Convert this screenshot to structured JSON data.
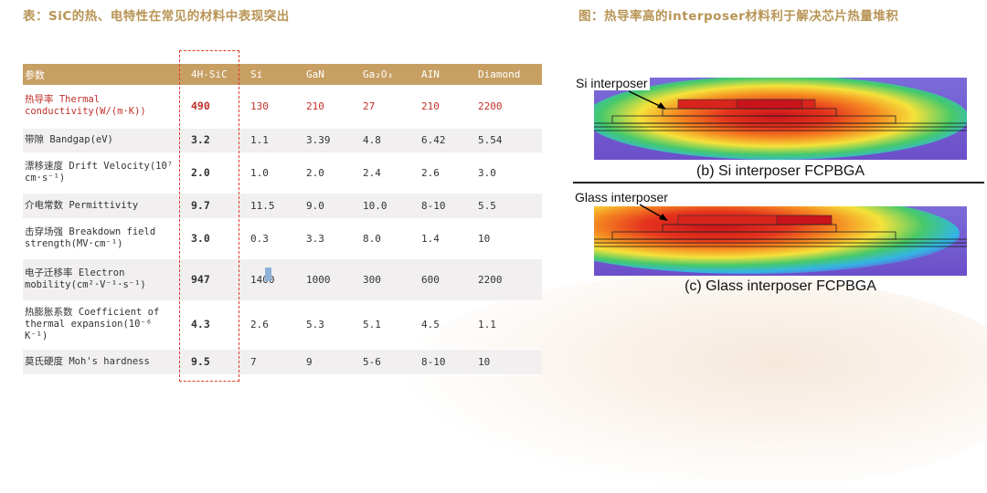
{
  "left_title": "表：SiC的热、电特性在常见的材料中表现突出",
  "right_title": "图：热导率高的interposer材料利于解决芯片热量堆积",
  "table": {
    "headers": [
      "参数",
      "4H-SiC",
      "Si",
      "GaN",
      "Ga₂O₃",
      "AIN",
      "Diamond"
    ],
    "rows": [
      {
        "param": "热导率 Thermal conductivity(W/(m·K))",
        "values": [
          "490",
          "130",
          "210",
          "27",
          "210",
          "2200"
        ],
        "highlight": true
      },
      {
        "param": "带隙 Bandgap(eV)",
        "values": [
          "3.2",
          "1.1",
          "3.39",
          "4.8",
          "6.42",
          "5.54"
        ]
      },
      {
        "param": "漂移速度 Drift Velocity(10⁷ cm·s⁻¹)",
        "values": [
          "2.0",
          "1.0",
          "2.0",
          "2.4",
          "2.6",
          "3.0"
        ]
      },
      {
        "param": "介电常数 Permittivity",
        "values": [
          "9.7",
          "11.5",
          "9.0",
          "10.0",
          "8-10",
          "5.5"
        ]
      },
      {
        "param": "击穿场强 Breakdown field strength(MV·cm⁻¹)",
        "values": [
          "3.0",
          "0.3",
          "3.3",
          "8.0",
          "1.4",
          "10"
        ]
      },
      {
        "param": "电子迁移率 Electron mobility(cm²·V⁻¹·s⁻¹)",
        "values": [
          "947",
          "1400",
          "1000",
          "300",
          "600",
          "2200"
        ]
      },
      {
        "param": "热膨胀系数 Coefficient of thermal expansion(10⁻⁶ K⁻¹)",
        "values": [
          "4.3",
          "2.6",
          "5.3",
          "5.1",
          "4.5",
          "1.1"
        ]
      },
      {
        "param": "莫氏硬度 Moh's hardness",
        "values": [
          "9.5",
          "7",
          "9",
          "5-6",
          "8-10",
          "10"
        ]
      }
    ]
  },
  "figure": {
    "panel_b": {
      "callout": "Si interposer",
      "caption": "(b) Si interposer FCPBGA"
    },
    "panel_c": {
      "callout": "Glass interposer",
      "caption": "(c) Glass interposer FCPBGA"
    }
  },
  "colors": {
    "accent": "#c79f63",
    "title": "#b89455",
    "highlight_red": "#c0312b",
    "dash": "#e03c2c"
  }
}
